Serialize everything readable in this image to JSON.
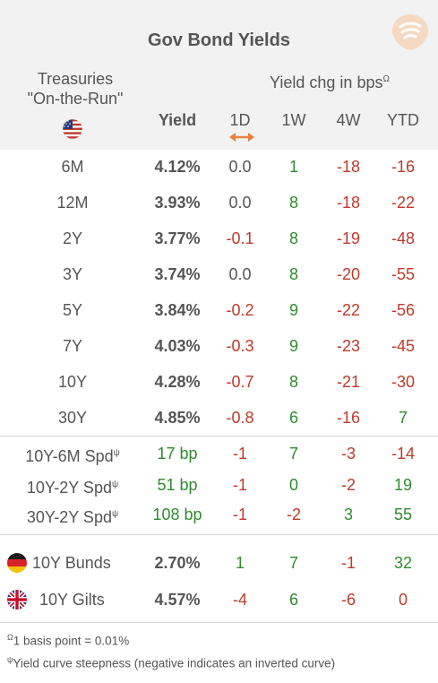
{
  "title": "Gov Bond Yields",
  "treasuries_label": [
    "Treasuries",
    "\"On-the-Run\""
  ],
  "yield_chg_label": "Yield chg in bps",
  "yield_chg_sup": "Ω",
  "columns": {
    "yield": "Yield",
    "d1": "1D",
    "w1": "1W",
    "w4": "4W",
    "ytd": "YTD"
  },
  "treasury_rows": [
    {
      "label": "6M",
      "yield": "4.12%",
      "d1": "0.0",
      "w1": "1",
      "w4": "-18",
      "ytd": "-16"
    },
    {
      "label": "12M",
      "yield": "3.93%",
      "d1": "0.0",
      "w1": "8",
      "w4": "-18",
      "ytd": "-22"
    },
    {
      "label": "2Y",
      "yield": "3.77%",
      "d1": "-0.1",
      "w1": "8",
      "w4": "-19",
      "ytd": "-48"
    },
    {
      "label": "3Y",
      "yield": "3.74%",
      "d1": "0.0",
      "w1": "8",
      "w4": "-20",
      "ytd": "-55"
    },
    {
      "label": "5Y",
      "yield": "3.84%",
      "d1": "-0.2",
      "w1": "9",
      "w4": "-22",
      "ytd": "-56"
    },
    {
      "label": "7Y",
      "yield": "4.03%",
      "d1": "-0.3",
      "w1": "9",
      "w4": "-23",
      "ytd": "-45"
    },
    {
      "label": "10Y",
      "yield": "4.28%",
      "d1": "-0.7",
      "w1": "8",
      "w4": "-21",
      "ytd": "-30"
    },
    {
      "label": "30Y",
      "yield": "4.85%",
      "d1": "-0.8",
      "w1": "6",
      "w4": "-16",
      "ytd": "7"
    }
  ],
  "spread_rows": [
    {
      "label": "10Y-6M Spd",
      "sup": "ψ",
      "yield": "17 bp",
      "d1": "-1",
      "w1": "7",
      "w4": "-3",
      "ytd": "-14"
    },
    {
      "label": "10Y-2Y Spd",
      "sup": "ψ",
      "yield": "51 bp",
      "d1": "-1",
      "w1": "0",
      "w4": "-2",
      "ytd": "19"
    },
    {
      "label": "30Y-2Y Spd",
      "sup": "ψ",
      "yield": "108 bp",
      "d1": "-1",
      "w1": "-2",
      "w4": "3",
      "ytd": "55"
    }
  ],
  "foreign_rows": [
    {
      "label": "10Y Bunds",
      "flag": "germany-flag",
      "yield": "2.70%",
      "d1": "1",
      "w1": "7",
      "w4": "-1",
      "ytd": "32"
    },
    {
      "label": "10Y Gilts",
      "flag": "uk-flag",
      "yield": "4.57%",
      "d1": "-4",
      "w1": "6",
      "w4": "-6",
      "ytd": "0"
    }
  ],
  "footnotes": [
    {
      "sup": "Ω",
      "text": "1 basis point = 0.01%"
    },
    {
      "sup": "ψ",
      "text": "Yield curve steepness (negative indicates an inverted curve)"
    }
  ],
  "colors": {
    "positive": "#2e8b2e",
    "negative": "#c0392b",
    "neutral": "#555555",
    "header_bg": "#f2f2f2",
    "accent": "#e8823a"
  }
}
